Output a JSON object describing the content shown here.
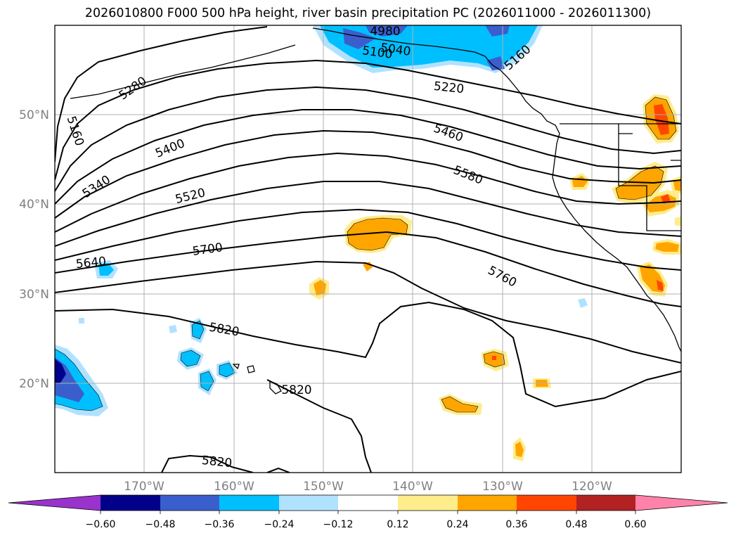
{
  "title": "2026010800 F000 500 hPa height, river basin precipitation PC (2026011000 - 2026011300)",
  "colors": {
    "neg_extend": "#9933cc",
    "neg_060": "#00008b",
    "neg_048": "#3a5fcd",
    "neg_036": "#00bfff",
    "neg_024": "#b0e2ff",
    "neutral": "#ffffff",
    "pos_012": "#ffec8b",
    "pos_024": "#ffa500",
    "pos_036": "#ff4500",
    "pos_048": "#b22222",
    "pos_extend": "#ff82ab"
  },
  "chart_data": {
    "type": "contour map",
    "region": "North Pacific and western North America",
    "lon_range": [
      -180,
      -110
    ],
    "lat_range": [
      10,
      60
    ],
    "lon_ticks": [
      "170°W",
      "160°W",
      "150°W",
      "140°W",
      "130°W",
      "120°W"
    ],
    "lat_ticks": [
      "50°N",
      "40°N",
      "30°N",
      "20°N"
    ],
    "gridlines": true,
    "height_contours_gpm": {
      "interval": 60,
      "labeled_values": [
        "4980",
        "5040",
        "5100",
        "5160",
        "5160",
        "5220",
        "5280",
        "5340",
        "5400",
        "5460",
        "5520",
        "5580",
        "5640",
        "5700",
        "5760",
        "5820",
        "5820",
        "5820"
      ]
    },
    "colorbar": {
      "orientation": "horizontal",
      "extend": "both",
      "ticks": [
        "−0.60",
        "−0.48",
        "−0.36",
        "−0.24",
        "−0.12",
        "0.12",
        "0.24",
        "0.36",
        "0.48",
        "0.60"
      ]
    },
    "precip_pc_features": [
      {
        "area": "Gulf of Alaska",
        "sign": "negative",
        "max_abs": 0.48
      },
      {
        "area": "Northern California / Nevada",
        "sign": "positive",
        "max_abs": 0.48
      },
      {
        "area": "Pacific Northwest / British Columbia",
        "sign": "positive",
        "max_abs": 0.36
      },
      {
        "area": "Central North Pacific near 145°W 37°N",
        "sign": "positive",
        "max_abs": 0.24
      },
      {
        "area": "Hawaiian Islands",
        "sign": "negative",
        "max_abs": 0.36
      },
      {
        "area": "Western tropical Pacific near 180° 20°N",
        "sign": "negative",
        "max_abs": 0.6
      },
      {
        "area": "Eastern tropical Pacific near 130°W 22°N",
        "sign": "positive",
        "max_abs": 0.36
      }
    ]
  }
}
